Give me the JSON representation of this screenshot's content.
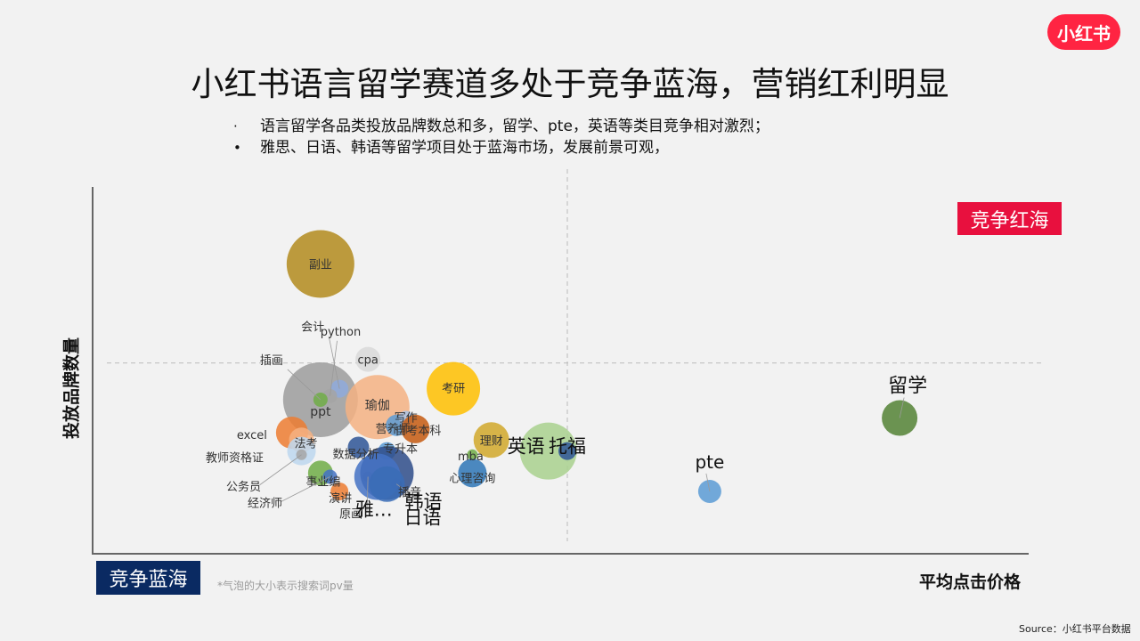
{
  "logo": {
    "text": "小红书",
    "color": "#ff2442"
  },
  "title": "小红书语言留学赛道多处于竞争蓝海，营销红利明显",
  "bullets": [
    {
      "marker": "·",
      "text": "语言留学各品类投放品牌数总和多，留学、pte，英语等类目竞争相对激烈；"
    },
    {
      "marker": "•",
      "text": "雅思、日语、韩语等留学项目处于蓝海市场，发展前景可观，"
    }
  ],
  "badges": {
    "red_ocean": "竞争红海",
    "blue_ocean": "竞争蓝海"
  },
  "note": "*气泡的大小表示搜索词pv量",
  "source": "Source：小红书平台数据",
  "colors": {
    "red_badge": "#e8103e",
    "blue_badge": "#0a2a62",
    "axis": "#666666",
    "divider": "#bbbbbb"
  },
  "chart_data": {
    "type": "scatter",
    "bubble": true,
    "xlabel": "平均点击价格",
    "ylabel": "投放品牌数量",
    "grid": false,
    "xlim": [
      0,
      100
    ],
    "ylim": [
      0,
      100
    ],
    "divider_x": 50,
    "divider_y": 52,
    "size_meaning": "搜索词pv量",
    "points": [
      {
        "label": "副业",
        "x": 24,
        "y": 79,
        "size": 38,
        "color": "#b38b1d",
        "label_size": 13
      },
      {
        "label": "ppt",
        "x": 24,
        "y": 42,
        "size": 42,
        "color": "#9c9c9c",
        "label_size": 14
      },
      {
        "label": "瑜伽",
        "x": 30,
        "y": 40,
        "size": 36,
        "color": "#f4b183",
        "label_size": 14
      },
      {
        "label": "考研",
        "x": 38,
        "y": 45,
        "size": 30,
        "color": "#ffc000",
        "label_size": 13
      },
      {
        "label": "cpa",
        "x": 29,
        "y": 53,
        "size": 14,
        "color": "#d9d9d9",
        "label_size": 13
      },
      {
        "label": "会计",
        "x": 26,
        "y": 45,
        "size": 10,
        "color": "#8faadc",
        "label_size": 13
      },
      {
        "label": "python",
        "x": 25,
        "y": 43,
        "size": 8,
        "color": "#a5a5a5",
        "label_size": 13
      },
      {
        "label": "插画",
        "x": 24,
        "y": 42,
        "size": 8,
        "color": "#70ad47",
        "label_size": 13
      },
      {
        "label": "excel",
        "x": 21,
        "y": 33,
        "size": 18,
        "color": "#ed7d31",
        "label_size": 13
      },
      {
        "label": "法考",
        "x": 22,
        "y": 31,
        "size": 14,
        "color": "#f4b183",
        "label_size": 13
      },
      {
        "label": "教师资格证",
        "x": 22,
        "y": 28,
        "size": 16,
        "color": "#bdd7ee",
        "label_size": 13
      },
      {
        "label": "事业编",
        "x": 24,
        "y": 22,
        "size": 14,
        "color": "#70ad47",
        "label_size": 13
      },
      {
        "label": "公务员",
        "x": 22,
        "y": 27,
        "size": 6,
        "color": "#a5a5a5",
        "label_size": 13
      },
      {
        "label": "经济师",
        "x": 25,
        "y": 21,
        "size": 8,
        "color": "#4472c4",
        "label_size": 13
      },
      {
        "label": "数据分析",
        "x": 28,
        "y": 29,
        "size": 12,
        "color": "#2e5597",
        "label_size": 13
      },
      {
        "label": "专升本",
        "x": 31,
        "y": 28,
        "size": 10,
        "color": "#5b9bd5",
        "label_size": 13
      },
      {
        "label": "营养师",
        "x": 32,
        "y": 35,
        "size": 12,
        "color": "#5b9bd5",
        "label_size": 13
      },
      {
        "label": "写作",
        "x": 33,
        "y": 37,
        "size": 8,
        "color": "#a9c4e8",
        "label_size": 13
      },
      {
        "label": "自考本科",
        "x": 34,
        "y": 34,
        "size": 16,
        "color": "#c55a11",
        "label_size": 13
      },
      {
        "label": "演讲",
        "x": 26,
        "y": 17,
        "size": 10,
        "color": "#ed7d31",
        "label_size": 13
      },
      {
        "label": "原画",
        "x": 29,
        "y": 21,
        "size": 6,
        "color": "#a5a5a5",
        "label_size": 13
      },
      {
        "label": "播音",
        "x": 32,
        "y": 19,
        "size": 6,
        "color": "#c55a11",
        "label_size": 13
      },
      {
        "label": "韩语",
        "x": 31,
        "y": 22,
        "size": 30,
        "color": "#2e4c8a",
        "label_size": 21
      },
      {
        "label": "雅…",
        "x": 30,
        "y": 21,
        "size": 26,
        "color": "#4472c4",
        "label_size": 21
      },
      {
        "label": "日语",
        "x": 31,
        "y": 19,
        "size": 20,
        "color": "#3a6cb6",
        "label_size": 21
      },
      {
        "label": "mba",
        "x": 40,
        "y": 27,
        "size": 6,
        "color": "#70ad47",
        "label_size": 13
      },
      {
        "label": "理财",
        "x": 42,
        "y": 31,
        "size": 20,
        "color": "#d1a82a",
        "label_size": 13
      },
      {
        "label": "心理咨询",
        "x": 40,
        "y": 22,
        "size": 16,
        "color": "#2e75b6",
        "label_size": 13
      },
      {
        "label": "英语",
        "x": 48,
        "y": 28,
        "size": 32,
        "color": "#a9d18e",
        "label_size": 21
      },
      {
        "label": "托福",
        "x": 50,
        "y": 28,
        "size": 10,
        "color": "#2e5597",
        "label_size": 21
      },
      {
        "label": "pte",
        "x": 65,
        "y": 17,
        "size": 13,
        "color": "#5b9bd5",
        "label_size": 20
      },
      {
        "label": "留学",
        "x": 85,
        "y": 37,
        "size": 20,
        "color": "#548235",
        "label_size": 22
      }
    ]
  }
}
